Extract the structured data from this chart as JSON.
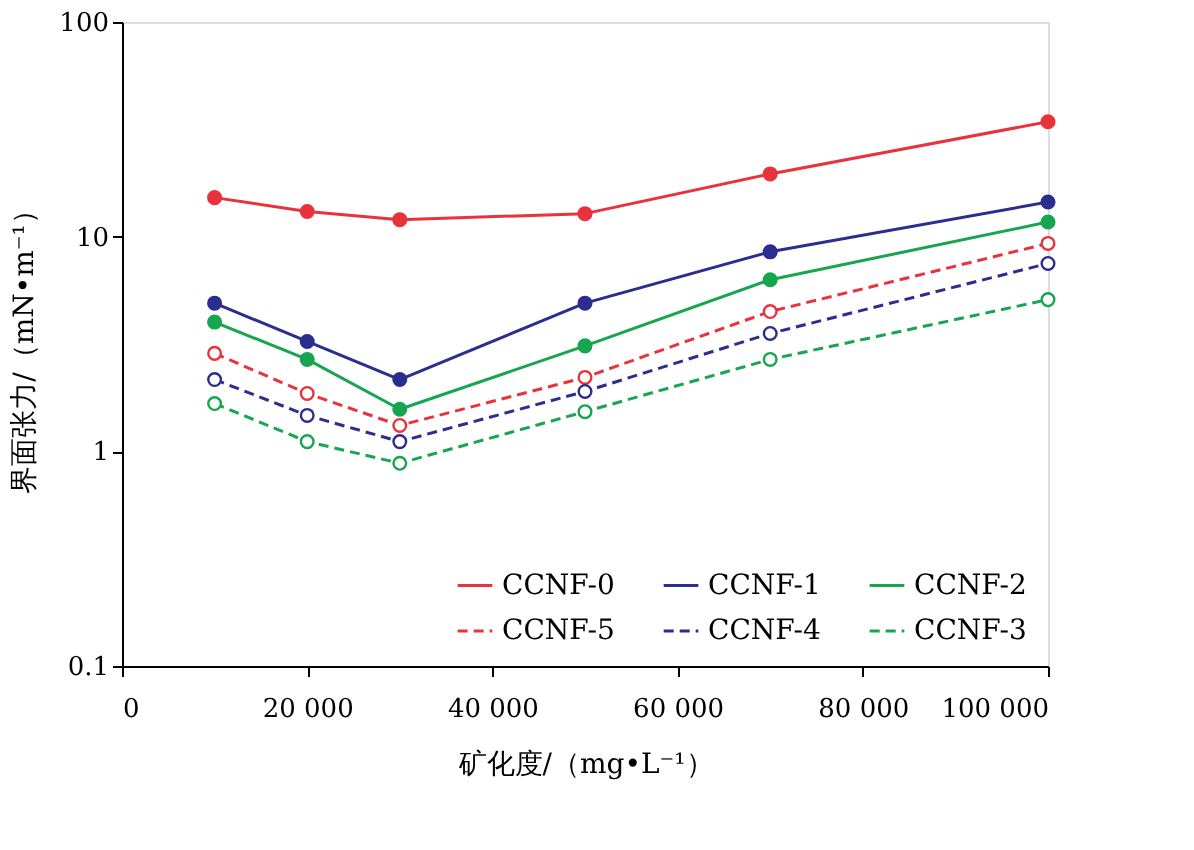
{
  "chart_data": {
    "type": "line",
    "xlabel": "矿化度/（mg•L⁻¹）",
    "ylabel": "界面张力/（mN•m⁻¹）",
    "x": [
      10000,
      20000,
      30000,
      50000,
      70000,
      100000
    ],
    "xlim": [
      0,
      100000
    ],
    "xticks": [
      0,
      {
        "value": 20000,
        "label": "20 000"
      },
      {
        "value": 40000,
        "label": "40 000"
      },
      {
        "value": 60000,
        "label": "60 000"
      },
      {
        "value": 80000,
        "label": "80 000"
      },
      {
        "value": 100000,
        "label": "100 000"
      }
    ],
    "ylim": [
      0.1,
      100
    ],
    "yticks": [
      0.1,
      1,
      10,
      100
    ],
    "log": "y",
    "grid": false,
    "legend": "bottom",
    "marker": "circle",
    "series": [
      {
        "name": "CCNF-0",
        "color": "#e8323c",
        "line_style": "solid",
        "values": [
          15.2,
          13.1,
          12,
          12.8,
          19.6,
          34.3
        ]
      },
      {
        "name": "CCNF-1",
        "color": "#2b2e8f",
        "line_style": "solid",
        "values": [
          4.9,
          3.25,
          2.16,
          4.9,
          8.5,
          14.5
        ]
      },
      {
        "name": "CCNF-2",
        "color": "#17a550",
        "line_style": "solid",
        "values": [
          4.0,
          2.68,
          1.57,
          3.1,
          6.3,
          11.7
        ]
      },
      {
        "name": "CCNF-5",
        "color": "#e8323c",
        "line_style": "dashed",
        "values": [
          2.86,
          1.86,
          1.32,
          2.21,
          4.48,
          9.3
        ]
      },
      {
        "name": "CCNF-4",
        "color": "#2b2e8f",
        "line_style": "dashed",
        "values": [
          2.16,
          1.47,
          1.11,
          1.9,
          3.54,
          7.5
        ]
      },
      {
        "name": "CCNF-3",
        "color": "#17a550",
        "line_style": "dashed",
        "values": [
          1.67,
          1.11,
          0.88,
          1.53,
          2.68,
          5.09
        ]
      }
    ]
  }
}
